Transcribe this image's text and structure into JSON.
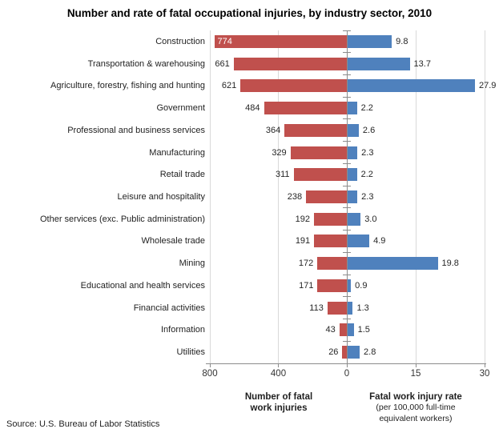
{
  "title": "Number and rate of fatal occupational injuries, by industry sector, 2010",
  "source": "Source: U.S. Bureau of Labor Statistics",
  "colors": {
    "count_bar": "#C0504D",
    "rate_bar": "#4F81BD",
    "gridline": "#D9D9D9",
    "axis": "#8C8C8C",
    "inside_label": "#FFFFFF"
  },
  "chart_data": {
    "type": "bar",
    "subtype": "horizontal-diverging",
    "title": "Number and rate of fatal occupational injuries, by industry sector, 2010",
    "grid": true,
    "legend_position": "none",
    "categories": [
      "Construction",
      "Transportation & warehousing",
      "Agriculture, forestry, fishing and hunting",
      "Government",
      "Professional and business services",
      "Manufacturing",
      "Retail trade",
      "Leisure and hospitality",
      "Other services (exc. Public administration)",
      "Wholesale trade",
      "Mining",
      "Educational and health services",
      "Financial activities",
      "Information",
      "Utilities"
    ],
    "series": [
      {
        "name": "Number of fatal work injuries",
        "side": "left",
        "color": "#C0504D",
        "axis_max": 800,
        "label_format": "integer",
        "inside_label_indices": [
          0
        ],
        "values": [
          774,
          661,
          621,
          484,
          364,
          329,
          311,
          238,
          192,
          191,
          172,
          171,
          113,
          43,
          26
        ]
      },
      {
        "name": "Fatal work injury rate",
        "side": "right",
        "color": "#4F81BD",
        "axis_max": 30,
        "label_format": "one_decimal",
        "inside_label_indices": [],
        "values": [
          9.8,
          13.7,
          27.9,
          2.2,
          2.6,
          2.3,
          2.2,
          2.3,
          3.0,
          4.9,
          19.8,
          0.9,
          1.3,
          1.5,
          2.8
        ]
      }
    ],
    "x_ticks": [
      {
        "label": "800",
        "side": "left",
        "value": 800
      },
      {
        "label": "400",
        "side": "left",
        "value": 400
      },
      {
        "label": "0",
        "side": "center",
        "value": 0
      },
      {
        "label": "15",
        "side": "right",
        "value": 15
      },
      {
        "label": "30",
        "side": "right",
        "value": 30
      }
    ],
    "left_axis_caption_lines": [
      "Number of fatal",
      "work injuries"
    ],
    "right_axis_caption_title": "Fatal work injury rate",
    "right_axis_caption_sub_lines": [
      "(per 100,000 full-time",
      "equivalent workers)"
    ]
  }
}
